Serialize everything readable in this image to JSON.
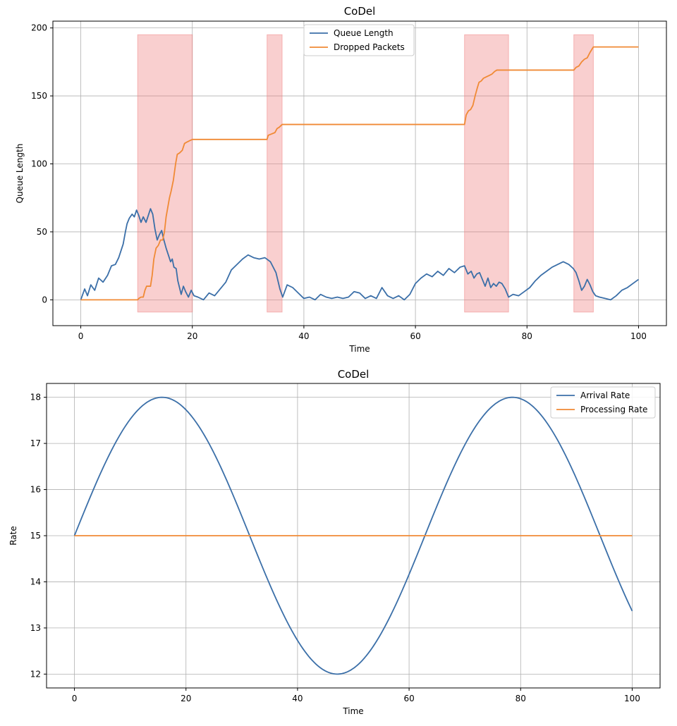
{
  "chart_data": [
    {
      "type": "line",
      "title": "CoDel",
      "xlabel": "Time",
      "ylabel": "Queue Length",
      "xlim": [
        -5,
        105
      ],
      "ylim": [
        -19,
        205
      ],
      "xticks": [
        0,
        20,
        40,
        60,
        80,
        100
      ],
      "yticks": [
        0,
        50,
        100,
        150,
        200
      ],
      "grid": true,
      "legend_position": "top-center",
      "shaded_regions": {
        "color": "#f08080",
        "y_range": [
          -9,
          195
        ],
        "intervals": [
          [
            10.2,
            20.0
          ],
          [
            33.4,
            36.1
          ],
          [
            68.8,
            76.7
          ],
          [
            88.4,
            91.9
          ]
        ]
      },
      "series": [
        {
          "name": "Queue Length",
          "color": "#3b6fa8",
          "points": [
            [
              0,
              0
            ],
            [
              0.7,
              8
            ],
            [
              1.2,
              3
            ],
            [
              1.8,
              11
            ],
            [
              2.5,
              7
            ],
            [
              3.2,
              16
            ],
            [
              4,
              13
            ],
            [
              4.8,
              18
            ],
            [
              5.5,
              25
            ],
            [
              6.2,
              26
            ],
            [
              6.8,
              31
            ],
            [
              7.2,
              36
            ],
            [
              7.6,
              41
            ],
            [
              8.0,
              50
            ],
            [
              8.3,
              56
            ],
            [
              8.7,
              60
            ],
            [
              9.2,
              63
            ],
            [
              9.6,
              61
            ],
            [
              10.0,
              66
            ],
            [
              10.4,
              62
            ],
            [
              10.8,
              57
            ],
            [
              11.2,
              61
            ],
            [
              11.7,
              57
            ],
            [
              12.1,
              62
            ],
            [
              12.5,
              67
            ],
            [
              12.9,
              63
            ],
            [
              13.3,
              52
            ],
            [
              13.7,
              44
            ],
            [
              14.1,
              48
            ],
            [
              14.5,
              51
            ],
            [
              14.9,
              44
            ],
            [
              15.3,
              38
            ],
            [
              15.7,
              33
            ],
            [
              16.1,
              28
            ],
            [
              16.4,
              30
            ],
            [
              16.7,
              24
            ],
            [
              17.1,
              23
            ],
            [
              17.4,
              14
            ],
            [
              17.7,
              9
            ],
            [
              18.0,
              4
            ],
            [
              18.4,
              10
            ],
            [
              18.8,
              6
            ],
            [
              19.3,
              2
            ],
            [
              19.8,
              7
            ],
            [
              20.3,
              3
            ],
            [
              21,
              2
            ],
            [
              22,
              0
            ],
            [
              23,
              5
            ],
            [
              24,
              3
            ],
            [
              25,
              8
            ],
            [
              26,
              13
            ],
            [
              27,
              22
            ],
            [
              28,
              26
            ],
            [
              29,
              30
            ],
            [
              30,
              33
            ],
            [
              31,
              31
            ],
            [
              32,
              30
            ],
            [
              33,
              31
            ],
            [
              34,
              28
            ],
            [
              35,
              20
            ],
            [
              35.7,
              8
            ],
            [
              36.2,
              2
            ],
            [
              37,
              11
            ],
            [
              38,
              9
            ],
            [
              39,
              5
            ],
            [
              40,
              1
            ],
            [
              41,
              2
            ],
            [
              42,
              0
            ],
            [
              43,
              4
            ],
            [
              44,
              2
            ],
            [
              45,
              1
            ],
            [
              46,
              2
            ],
            [
              47,
              1
            ],
            [
              48,
              2
            ],
            [
              49,
              6
            ],
            [
              50,
              5
            ],
            [
              51,
              1
            ],
            [
              52,
              3
            ],
            [
              53,
              1
            ],
            [
              54,
              9
            ],
            [
              55,
              3
            ],
            [
              56,
              1
            ],
            [
              57,
              3
            ],
            [
              58,
              0
            ],
            [
              59,
              4
            ],
            [
              60,
              12
            ],
            [
              61,
              16
            ],
            [
              62,
              19
            ],
            [
              63,
              17
            ],
            [
              64,
              21
            ],
            [
              65,
              18
            ],
            [
              66,
              23
            ],
            [
              67,
              20
            ],
            [
              68,
              24
            ],
            [
              68.8,
              25
            ],
            [
              69.4,
              19
            ],
            [
              70,
              21
            ],
            [
              70.5,
              16
            ],
            [
              71,
              19
            ],
            [
              71.5,
              20
            ],
            [
              72,
              15
            ],
            [
              72.5,
              10
            ],
            [
              73,
              16
            ],
            [
              73.5,
              9
            ],
            [
              74,
              12
            ],
            [
              74.5,
              10
            ],
            [
              75,
              13
            ],
            [
              75.5,
              12
            ],
            [
              76.1,
              8
            ],
            [
              76.7,
              2
            ],
            [
              77.5,
              4
            ],
            [
              78.5,
              3
            ],
            [
              79.5,
              6
            ],
            [
              80.5,
              9
            ],
            [
              81.5,
              14
            ],
            [
              82.5,
              18
            ],
            [
              83.5,
              21
            ],
            [
              84.5,
              24
            ],
            [
              85.5,
              26
            ],
            [
              86.5,
              28
            ],
            [
              87.5,
              26
            ],
            [
              88.3,
              23
            ],
            [
              88.8,
              20
            ],
            [
              89.3,
              14
            ],
            [
              89.8,
              7
            ],
            [
              90.3,
              10
            ],
            [
              90.8,
              15
            ],
            [
              91.3,
              11
            ],
            [
              91.8,
              6
            ],
            [
              92.3,
              3
            ],
            [
              93,
              2
            ],
            [
              94,
              1
            ],
            [
              95,
              0
            ],
            [
              96,
              3
            ],
            [
              97,
              7
            ],
            [
              98,
              9
            ],
            [
              99,
              12
            ],
            [
              100,
              15
            ]
          ]
        },
        {
          "name": "Dropped Packets",
          "color": "#f08a35",
          "points": [
            [
              0,
              0
            ],
            [
              10.2,
              0
            ],
            [
              10.4,
              1
            ],
            [
              10.8,
              2
            ],
            [
              11.2,
              2
            ],
            [
              11.5,
              7
            ],
            [
              11.8,
              10
            ],
            [
              12.5,
              10
            ],
            [
              12.8,
              18
            ],
            [
              13.1,
              30
            ],
            [
              13.5,
              38
            ],
            [
              13.9,
              40
            ],
            [
              14.3,
              44
            ],
            [
              14.7,
              44
            ],
            [
              15,
              50
            ],
            [
              15.3,
              61
            ],
            [
              15.6,
              68
            ],
            [
              15.9,
              75
            ],
            [
              16.2,
              80
            ],
            [
              16.6,
              88
            ],
            [
              17,
              100
            ],
            [
              17.3,
              107
            ],
            [
              17.7,
              108
            ],
            [
              18.2,
              110
            ],
            [
              18.6,
              115
            ],
            [
              19,
              116
            ],
            [
              19.5,
              117
            ],
            [
              20.0,
              118
            ],
            [
              33.4,
              118
            ],
            [
              33.6,
              121
            ],
            [
              34.2,
              122
            ],
            [
              34.8,
              123
            ],
            [
              35.2,
              126
            ],
            [
              35.6,
              127
            ],
            [
              36.1,
              129
            ],
            [
              68.8,
              129
            ],
            [
              69.1,
              136
            ],
            [
              69.5,
              139
            ],
            [
              69.9,
              140
            ],
            [
              70.3,
              143
            ],
            [
              70.7,
              150
            ],
            [
              71.1,
              156
            ],
            [
              71.4,
              160
            ],
            [
              71.8,
              161
            ],
            [
              72.2,
              163
            ],
            [
              72.7,
              164
            ],
            [
              73.2,
              165
            ],
            [
              73.7,
              166
            ],
            [
              74.2,
              168
            ],
            [
              74.6,
              169
            ],
            [
              76.7,
              169
            ],
            [
              88.4,
              169
            ],
            [
              88.8,
              171
            ],
            [
              89.3,
              172
            ],
            [
              89.8,
              175
            ],
            [
              90.3,
              177
            ],
            [
              90.8,
              178
            ],
            [
              91.3,
              182
            ],
            [
              91.9,
              186
            ],
            [
              100,
              186
            ]
          ]
        }
      ]
    },
    {
      "type": "line",
      "title": "CoDel",
      "xlabel": "Time",
      "ylabel": "Rate",
      "xlim": [
        -5,
        105
      ],
      "ylim": [
        11.7,
        18.3
      ],
      "xticks": [
        0,
        20,
        40,
        60,
        80,
        100
      ],
      "yticks": [
        12,
        13,
        14,
        15,
        16,
        17,
        18
      ],
      "grid": true,
      "legend_position": "top-right",
      "series": [
        {
          "name": "Arrival Rate",
          "color": "#3b6fa8",
          "function": "15 + 3*sin(0.1*t)",
          "x_range": [
            0,
            100
          ],
          "samples": 300
        },
        {
          "name": "Processing Rate",
          "color": "#f08a35",
          "points": [
            [
              0,
              15
            ],
            [
              100,
              15
            ]
          ]
        }
      ]
    }
  ]
}
